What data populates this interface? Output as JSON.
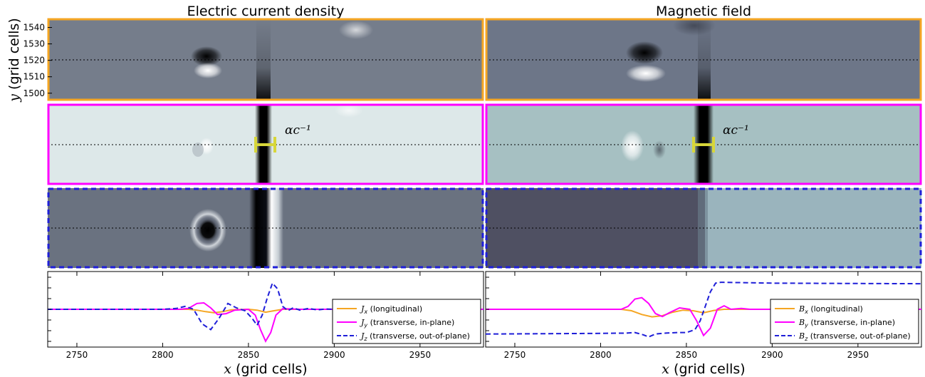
{
  "figure": {
    "titles": [
      "Electric current density",
      "Magnetic field"
    ],
    "ylabel_var": "y",
    "ylabel_unit": "(grid cells)",
    "xlabel_var": "x",
    "xlabel_unit": "(grid cells)",
    "annotation": "αc⁻¹",
    "colors": {
      "orange": "#f5a623",
      "magenta": "#ff00ff",
      "blue": "#1f1fd8",
      "yellow": "#d7d63a"
    }
  },
  "chart_data": [
    {
      "type": "heatmap",
      "panel": "Jx-map",
      "title": "Electric current density",
      "ylabel": "y (grid cells)",
      "y_ticks": [
        1500,
        1510,
        1520,
        1530,
        1540
      ],
      "ylim": [
        1496,
        1545
      ],
      "xlim": [
        2733,
        2987
      ],
      "cut_y": 1520,
      "border": "orange-solid"
    },
    {
      "type": "heatmap",
      "panel": "Bx-map",
      "title": "Magnetic field",
      "xlim": [
        2733,
        2987
      ],
      "cut_y": 1520,
      "border": "orange-solid"
    },
    {
      "type": "heatmap",
      "panel": "Jy-map",
      "xlim": [
        2733,
        2987
      ],
      "cut_y": 1520,
      "border": "magenta-solid",
      "annotation": "αc⁻¹"
    },
    {
      "type": "heatmap",
      "panel": "By-map",
      "xlim": [
        2733,
        2987
      ],
      "cut_y": 1520,
      "border": "magenta-solid",
      "annotation": "αc⁻¹"
    },
    {
      "type": "heatmap",
      "panel": "Jz-map",
      "xlim": [
        2733,
        2987
      ],
      "cut_y": 1520,
      "border": "blue-dashed"
    },
    {
      "type": "heatmap",
      "panel": "Bz-map",
      "xlim": [
        2733,
        2987
      ],
      "cut_y": 1520,
      "border": "blue-dashed"
    },
    {
      "type": "line",
      "panel": "J-profiles",
      "xlabel": "x (grid cells)",
      "x_ticks": [
        2750,
        2800,
        2850,
        2900,
        2950
      ],
      "xlim": [
        2733,
        2987
      ],
      "ylim": [
        -1.3,
        1.3
      ],
      "legend_loc": "lower-right",
      "series": [
        {
          "name": "Jx (longitudinal)",
          "sym": "J",
          "sub": "x",
          "desc": " (longitudinal)",
          "color": "#f5a623",
          "dash": "solid",
          "x": [
            2733,
            2815,
            2820,
            2825,
            2830,
            2835,
            2840,
            2850,
            2855,
            2860,
            2865,
            2870,
            2880,
            2987
          ],
          "y": [
            0,
            0,
            -0.03,
            -0.08,
            -0.12,
            -0.08,
            -0.02,
            0,
            -0.03,
            -0.1,
            -0.05,
            0,
            0,
            0
          ]
        },
        {
          "name": "Jy (transverse, in-plane)",
          "sym": "J",
          "sub": "y",
          "desc": " (transverse, in-plane)",
          "color": "#ff00ff",
          "dash": "solid",
          "x": [
            2733,
            2810,
            2815,
            2820,
            2824,
            2828,
            2832,
            2837,
            2842,
            2850,
            2854,
            2857,
            2860,
            2863,
            2866,
            2870,
            2880,
            2987
          ],
          "y": [
            0,
            0,
            0.03,
            0.2,
            0.22,
            0.05,
            -0.18,
            -0.15,
            -0.03,
            0,
            -0.2,
            -0.7,
            -1.1,
            -0.8,
            -0.2,
            0.02,
            0,
            0
          ]
        },
        {
          "name": "Jz (transverse, out-of-plane)",
          "sym": "J",
          "sub": "z",
          "desc": " (transverse, out-of-plane)",
          "color": "#1f1fd8",
          "dash": "dashed",
          "x": [
            2733,
            2800,
            2808,
            2813,
            2818,
            2823,
            2828,
            2833,
            2838,
            2843,
            2848,
            2852,
            2855,
            2858,
            2861,
            2864,
            2867,
            2870,
            2873,
            2876,
            2880,
            2885,
            2890,
            2895,
            2900,
            2987
          ],
          "y": [
            0,
            0,
            0.03,
            0.1,
            0.0,
            -0.5,
            -0.7,
            -0.3,
            0.2,
            0.05,
            -0.05,
            -0.3,
            -0.55,
            -0.2,
            0.4,
            0.9,
            0.7,
            0.1,
            -0.05,
            0.05,
            -0.03,
            0.03,
            -0.02,
            0.01,
            0,
            0
          ]
        }
      ]
    },
    {
      "type": "line",
      "panel": "B-profiles",
      "xlabel": "x (grid cells)",
      "x_ticks": [
        2750,
        2800,
        2850,
        2900,
        2950
      ],
      "xlim": [
        2733,
        2987
      ],
      "ylim": [
        -1.3,
        1.3
      ],
      "legend_loc": "lower-right",
      "series": [
        {
          "name": "Bx (longitudinal)",
          "sym": "B",
          "sub": "x",
          "desc": " (longitudinal)",
          "color": "#f5a623",
          "dash": "solid",
          "x": [
            2733,
            2812,
            2818,
            2824,
            2830,
            2836,
            2842,
            2848,
            2854,
            2860,
            2866,
            2872,
            2987
          ],
          "y": [
            0,
            0,
            -0.05,
            -0.18,
            -0.26,
            -0.22,
            -0.1,
            -0.03,
            -0.05,
            -0.12,
            -0.04,
            0,
            0
          ]
        },
        {
          "name": "By (transverse, in-plane)",
          "sym": "B",
          "sub": "y",
          "desc": " (transverse, in-plane)",
          "color": "#ff00ff",
          "dash": "solid",
          "x": [
            2733,
            2812,
            2816,
            2820,
            2824,
            2828,
            2832,
            2836,
            2840,
            2846,
            2852,
            2856,
            2860,
            2864,
            2868,
            2872,
            2876,
            2882,
            2887,
            2987
          ],
          "y": [
            0,
            0,
            0.1,
            0.35,
            0.4,
            0.2,
            -0.15,
            -0.25,
            -0.12,
            0.05,
            0.0,
            -0.4,
            -0.9,
            -0.65,
            0.0,
            0.12,
            0.0,
            0.03,
            0,
            0
          ]
        },
        {
          "name": "Bz (transverse, out-of-plane)",
          "sym": "B",
          "sub": "z",
          "desc": " (transverse, out-of-plane)",
          "color": "#1f1fd8",
          "dash": "dashed",
          "x": [
            2733,
            2800,
            2815,
            2820,
            2825,
            2828,
            2832,
            2838,
            2845,
            2850,
            2855,
            2858,
            2861,
            2864,
            2867,
            2870,
            2880,
            2900,
            2940,
            2987
          ],
          "y": [
            -0.85,
            -0.83,
            -0.82,
            -0.8,
            -0.88,
            -0.95,
            -0.85,
            -0.82,
            -0.8,
            -0.8,
            -0.7,
            -0.4,
            0.1,
            0.6,
            0.9,
            0.93,
            0.92,
            0.9,
            0.89,
            0.88
          ]
        }
      ]
    }
  ]
}
